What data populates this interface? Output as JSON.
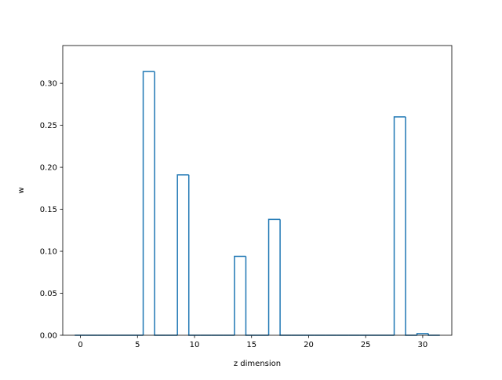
{
  "chart_data": {
    "type": "bar",
    "style": "step-outline",
    "xlabel": "z dimension",
    "ylabel": "w",
    "xlim": [
      -1.55,
      32.55
    ],
    "ylim": [
      0,
      0.345
    ],
    "xticks": [
      0,
      5,
      10,
      15,
      20,
      25,
      30
    ],
    "yticks": [
      0.0,
      0.05,
      0.1,
      0.15,
      0.2,
      0.25,
      0.3
    ],
    "ytick_labels": [
      "0.00",
      "0.05",
      "0.10",
      "0.15",
      "0.20",
      "0.25",
      "0.30"
    ],
    "xtick_labels": [
      "0",
      "5",
      "10",
      "15",
      "20",
      "25",
      "30"
    ],
    "grid": false,
    "color": "#1f77b4",
    "bins": [
      {
        "x": 0,
        "value": 0
      },
      {
        "x": 1,
        "value": 0
      },
      {
        "x": 2,
        "value": 0
      },
      {
        "x": 3,
        "value": 0
      },
      {
        "x": 4,
        "value": 0
      },
      {
        "x": 5,
        "value": 0
      },
      {
        "x": 6,
        "value": 0.314
      },
      {
        "x": 7,
        "value": 0
      },
      {
        "x": 8,
        "value": 0
      },
      {
        "x": 9,
        "value": 0.191
      },
      {
        "x": 10,
        "value": 0
      },
      {
        "x": 11,
        "value": 0
      },
      {
        "x": 12,
        "value": 0
      },
      {
        "x": 13,
        "value": 0
      },
      {
        "x": 14,
        "value": 0.094
      },
      {
        "x": 15,
        "value": 0
      },
      {
        "x": 16,
        "value": 0
      },
      {
        "x": 17,
        "value": 0.138
      },
      {
        "x": 18,
        "value": 0
      },
      {
        "x": 19,
        "value": 0
      },
      {
        "x": 20,
        "value": 0
      },
      {
        "x": 21,
        "value": 0
      },
      {
        "x": 22,
        "value": 0
      },
      {
        "x": 23,
        "value": 0
      },
      {
        "x": 24,
        "value": 0
      },
      {
        "x": 25,
        "value": 0
      },
      {
        "x": 26,
        "value": 0
      },
      {
        "x": 27,
        "value": 0
      },
      {
        "x": 28,
        "value": 0.26
      },
      {
        "x": 29,
        "value": 0
      },
      {
        "x": 30,
        "value": 0.002
      },
      {
        "x": 31,
        "value": 0
      }
    ]
  }
}
